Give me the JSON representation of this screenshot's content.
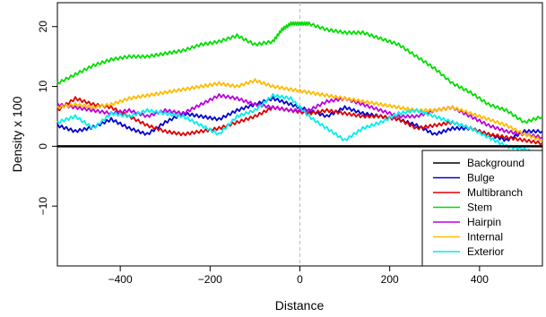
{
  "chart_data": {
    "type": "line",
    "title": "",
    "xlabel": "Distance",
    "ylabel": "Density x 100",
    "xlim": [
      -540,
      540
    ],
    "ylim": [
      -20,
      24
    ],
    "x_ticks": [
      -400,
      -200,
      0,
      200,
      400
    ],
    "y_ticks": [
      -10,
      0,
      10,
      20
    ],
    "grid": false,
    "reference_lines": [
      {
        "axis": "x",
        "value": 0,
        "style": "dashed",
        "color": "#bbbbbb"
      },
      {
        "axis": "y",
        "value": 0,
        "style": "solid",
        "color": "#000000"
      }
    ],
    "legend_position": "bottom-right",
    "series": [
      {
        "name": "Background",
        "color": "#000000",
        "x": [
          -540,
          540
        ],
        "y": [
          0,
          0
        ]
      },
      {
        "name": "Bulge",
        "color": "#0000cc",
        "x": [
          -540,
          -500,
          -460,
          -420,
          -380,
          -340,
          -300,
          -260,
          -220,
          -180,
          -140,
          -100,
          -60,
          -20,
          20,
          60,
          100,
          140,
          180,
          220,
          260,
          300,
          340,
          380,
          420,
          460,
          500,
          540
        ],
        "y": [
          3.5,
          2.5,
          3.2,
          4.5,
          3.0,
          2.0,
          4.0,
          5.5,
          5.0,
          4.5,
          6.0,
          7.0,
          8.0,
          7.0,
          6.0,
          5.0,
          6.5,
          5.5,
          5.0,
          4.5,
          3.5,
          2.0,
          3.0,
          3.0,
          2.0,
          1.0,
          2.5,
          2.5
        ]
      },
      {
        "name": "Multibranch",
        "color": "#dd0000",
        "x": [
          -540,
          -500,
          -460,
          -420,
          -380,
          -340,
          -300,
          -260,
          -220,
          -180,
          -140,
          -100,
          -60,
          -20,
          20,
          60,
          100,
          140,
          180,
          220,
          260,
          300,
          340,
          380,
          420,
          460,
          500,
          540
        ],
        "y": [
          6.0,
          8.0,
          7.0,
          6.5,
          5.0,
          3.5,
          2.5,
          2.0,
          2.5,
          3.0,
          4.0,
          5.0,
          6.5,
          6.0,
          5.5,
          6.0,
          5.5,
          5.0,
          5.0,
          4.5,
          3.0,
          3.5,
          4.0,
          3.0,
          2.0,
          1.5,
          1.0,
          0.5
        ]
      },
      {
        "name": "Stem",
        "color": "#00dd00",
        "x": [
          -540,
          -500,
          -460,
          -420,
          -380,
          -340,
          -300,
          -260,
          -220,
          -180,
          -140,
          -100,
          -60,
          -40,
          -20,
          0,
          20,
          60,
          100,
          140,
          180,
          220,
          260,
          300,
          340,
          380,
          420,
          460,
          500,
          540
        ],
        "y": [
          10.5,
          12.0,
          13.5,
          14.5,
          15.0,
          15.0,
          15.5,
          16.0,
          17.0,
          17.5,
          18.5,
          17.0,
          17.5,
          19.5,
          20.5,
          20.5,
          20.5,
          19.5,
          19.0,
          19.0,
          18.0,
          17.0,
          15.0,
          13.0,
          10.5,
          9.0,
          7.0,
          6.0,
          4.0,
          5.0
        ]
      },
      {
        "name": "Hairpin",
        "color": "#bb00dd",
        "x": [
          -540,
          -500,
          -460,
          -420,
          -380,
          -340,
          -300,
          -260,
          -220,
          -180,
          -140,
          -100,
          -60,
          -20,
          20,
          60,
          100,
          140,
          180,
          220,
          260,
          300,
          340,
          380,
          420,
          460,
          500,
          540
        ],
        "y": [
          7.0,
          6.5,
          6.0,
          5.5,
          6.0,
          5.0,
          6.0,
          5.5,
          7.0,
          8.5,
          8.0,
          7.0,
          6.5,
          6.0,
          6.0,
          7.5,
          8.0,
          7.0,
          6.0,
          5.0,
          5.0,
          6.0,
          6.5,
          5.0,
          3.5,
          2.5,
          2.0,
          1.5
        ]
      },
      {
        "name": "Internal",
        "color": "#ffbb00",
        "x": [
          -540,
          -500,
          -460,
          -420,
          -380,
          -340,
          -300,
          -260,
          -220,
          -180,
          -140,
          -100,
          -60,
          -20,
          20,
          60,
          100,
          140,
          180,
          220,
          260,
          300,
          340,
          380,
          420,
          460,
          500,
          540
        ],
        "y": [
          6.5,
          7.0,
          6.5,
          7.0,
          8.0,
          8.5,
          9.0,
          9.5,
          10.0,
          10.5,
          10.0,
          11.0,
          10.0,
          9.5,
          9.0,
          8.5,
          8.0,
          7.5,
          7.0,
          6.5,
          6.0,
          6.0,
          6.5,
          5.5,
          4.5,
          3.5,
          2.0,
          1.0
        ]
      },
      {
        "name": "Exterior",
        "color": "#00eeee",
        "x": [
          -540,
          -500,
          -460,
          -420,
          -380,
          -340,
          -300,
          -260,
          -220,
          -180,
          -140,
          -100,
          -60,
          -20,
          20,
          60,
          100,
          140,
          180,
          220,
          260,
          300,
          340,
          380,
          420,
          460,
          500,
          540
        ],
        "y": [
          4.0,
          5.0,
          3.0,
          5.5,
          5.0,
          6.0,
          5.5,
          5.0,
          3.5,
          2.0,
          5.0,
          6.0,
          8.5,
          8.0,
          5.0,
          3.0,
          1.0,
          3.0,
          4.0,
          5.5,
          6.0,
          5.0,
          4.0,
          3.0,
          1.5,
          0.0,
          -0.5,
          -1.5
        ]
      }
    ]
  }
}
